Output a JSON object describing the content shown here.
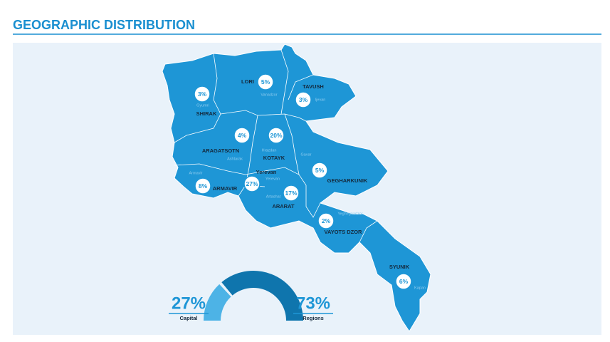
{
  "title": "GEOGRAPHIC DISTRIBUTION",
  "regions": [
    {
      "name": "LORI",
      "share": "5%",
      "city": "Vanadzor"
    },
    {
      "name": "SHIRAK",
      "share": "3%",
      "city": "Gyumri"
    },
    {
      "name": "TAVUSH",
      "share": "3%",
      "city": "Ijevan"
    },
    {
      "name": "ARAGATSOTN",
      "share": "4%",
      "city": "Ashtarak"
    },
    {
      "name": "KOTAYK",
      "share": "20%",
      "city": "Hrazdan"
    },
    {
      "name": "GEGHARKUNIK",
      "share": "5%",
      "city": "Gavar"
    },
    {
      "name": "ARMAVIR",
      "share": "8%",
      "city": "Armavir"
    },
    {
      "name": "Yerevan",
      "share": "27%",
      "city": "Yerevan"
    },
    {
      "name": "ARARAT",
      "share": "17%",
      "city": "Artashat"
    },
    {
      "name": "VAYOTS DZOR",
      "share": "2%",
      "city": "Yeghegnadzor"
    },
    {
      "name": "SYUNIK",
      "share": "6%",
      "city": "Kapan"
    }
  ],
  "split": {
    "values": [
      27,
      73
    ],
    "value_labels": [
      "27%",
      "73%"
    ],
    "labels": [
      "Capital",
      "Regions"
    ],
    "colors": [
      "#4db3e6",
      "#0f75ad"
    ]
  }
}
